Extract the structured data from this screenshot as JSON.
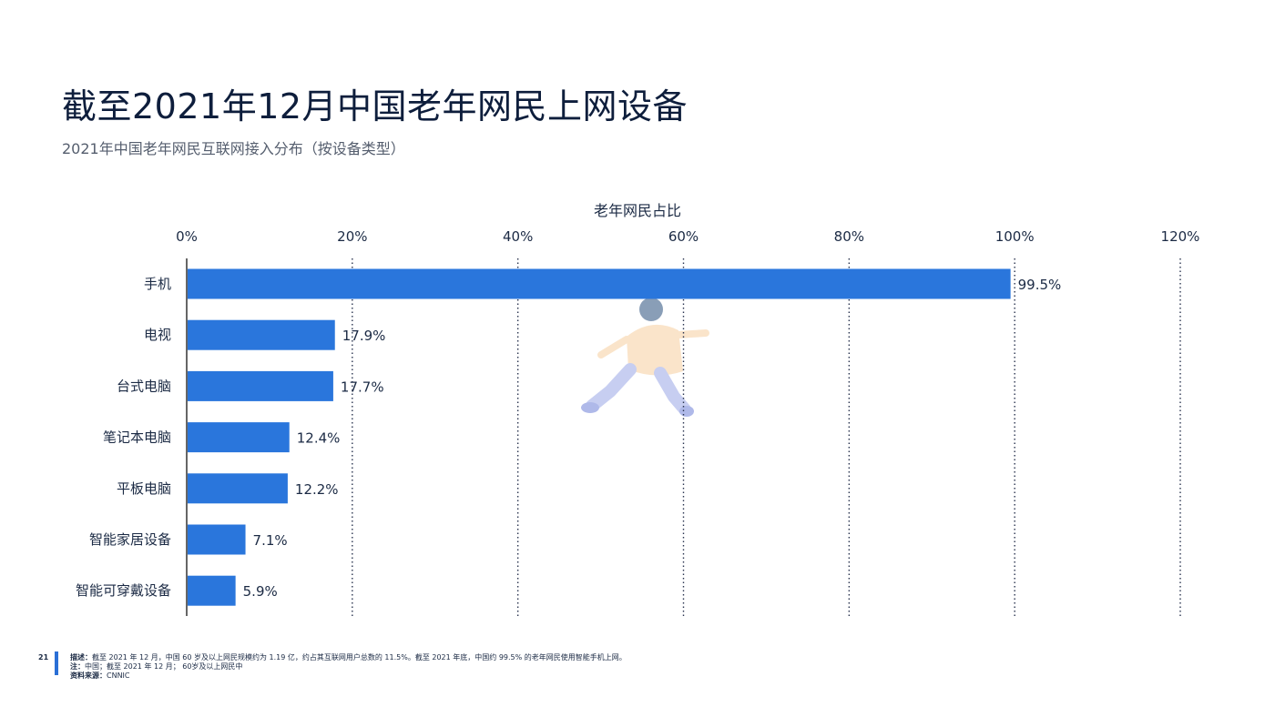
{
  "title": "截至2021年12月中国老年网民上网设备",
  "subtitle": "2021年中国老年网民互联网接入分布（按设备类型）",
  "chart_data": {
    "type": "bar",
    "orientation": "horizontal",
    "xlabel": "老年网民占比",
    "xlim": [
      0,
      120
    ],
    "ticks": [
      "0%",
      "20%",
      "40%",
      "60%",
      "80%",
      "100%",
      "120%"
    ],
    "categories": [
      "手机",
      "电视",
      "台式电脑",
      "笔记本电脑",
      "平板电脑",
      "智能家居设备",
      "智能可穿戴设备"
    ],
    "values": [
      99.5,
      17.9,
      17.7,
      12.4,
      12.2,
      7.1,
      5.9
    ],
    "value_labels": [
      "99.5%",
      "17.9%",
      "17.7%",
      "12.4%",
      "12.2%",
      "7.1%",
      "5.9%"
    ],
    "bar_color": "#2a76dc",
    "grid": "vertical dotted"
  },
  "footer": {
    "page_number": "21",
    "description_label": "描述：",
    "description": "截至 2021 年 12 月，中国 60 岁及以上网民规模约为 1.19 亿，约占其互联网用户总数的 11.5%。截至 2021 年底，中国约 99.5% 的老年网民使用智能手机上网。",
    "note_label": "注：",
    "note": "中国；截至 2021 年 12 月； 60岁及以上网民中",
    "source_label": "资料来源：",
    "source": "CNNIC"
  },
  "accent_color": "#2a6fd6"
}
